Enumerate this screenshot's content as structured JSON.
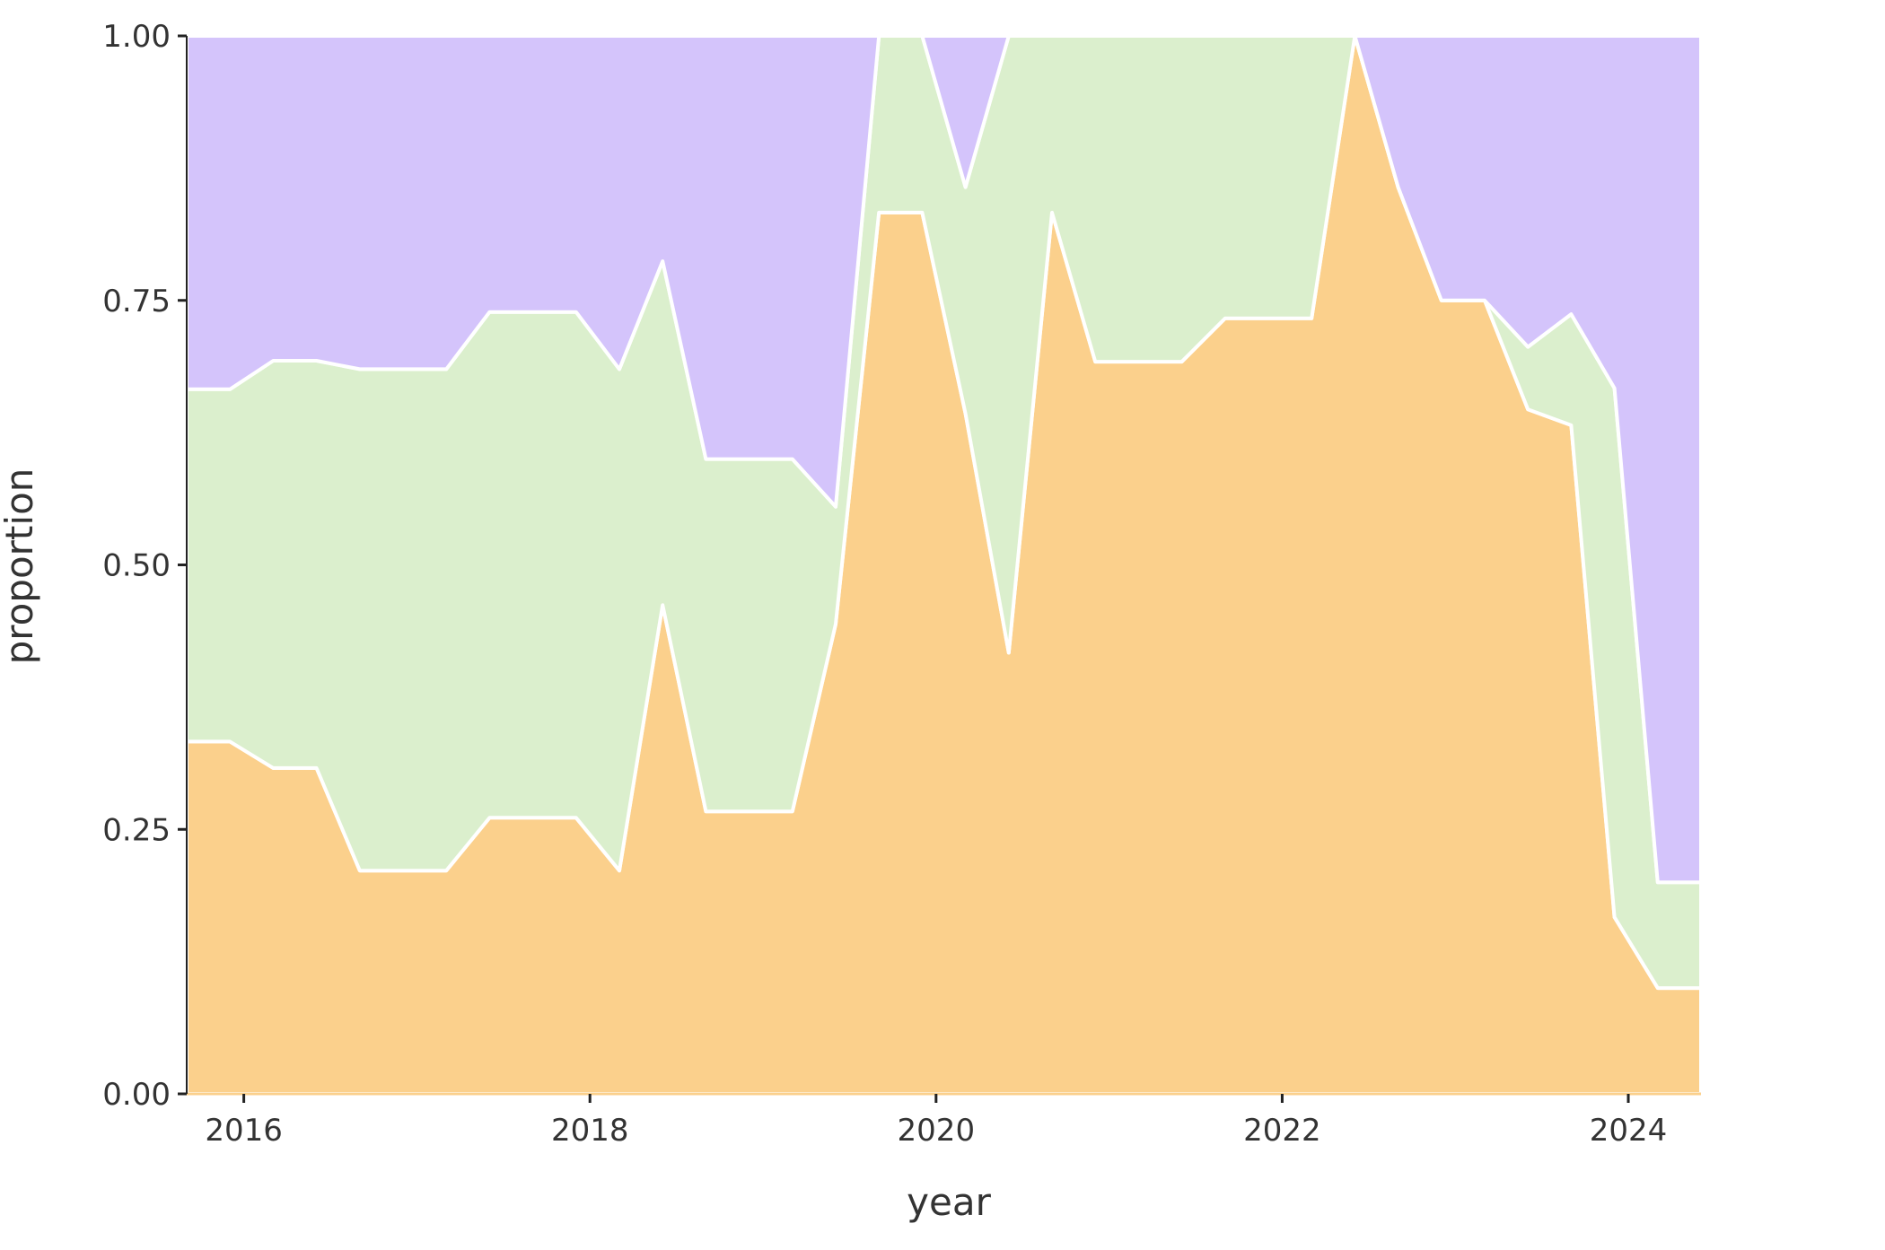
{
  "chart_data": {
    "type": "area",
    "stacked": true,
    "normalized": true,
    "xlabel": "year",
    "ylabel": "proportion",
    "xlim": [
      2015.67,
      2024.42
    ],
    "ylim": [
      0,
      1
    ],
    "x_ticks": [
      2016,
      2018,
      2020,
      2022,
      2024
    ],
    "x_tick_labels": [
      "2016",
      "2018",
      "2020",
      "2022",
      "2024"
    ],
    "y_ticks": [
      0,
      0.25,
      0.5,
      0.75,
      1.0
    ],
    "y_tick_labels": [
      "0.00",
      "0.25",
      "0.50",
      "0.75",
      "1.00"
    ],
    "grid": false,
    "legend": "none",
    "x": [
      2015.67,
      2015.92,
      2016.17,
      2016.42,
      2016.67,
      2016.92,
      2017.17,
      2017.42,
      2017.67,
      2017.92,
      2018.17,
      2018.42,
      2018.67,
      2018.92,
      2019.17,
      2019.42,
      2019.67,
      2019.92,
      2020.17,
      2020.42,
      2020.67,
      2020.92,
      2021.17,
      2021.42,
      2021.67,
      2021.92,
      2022.17,
      2022.42,
      2022.67,
      2022.92,
      2023.17,
      2023.42,
      2023.67,
      2023.92,
      2024.17,
      2024.42
    ],
    "series": [
      {
        "color": "#fbd08c",
        "values": [
          0.333,
          0.333,
          0.308,
          0.308,
          0.211,
          0.211,
          0.211,
          0.261,
          0.261,
          0.261,
          0.211,
          0.462,
          0.267,
          0.267,
          0.267,
          0.444,
          0.833,
          0.833,
          0.643,
          0.417,
          0.833,
          0.692,
          0.692,
          0.692,
          0.733,
          0.733,
          0.733,
          1.0,
          0.857,
          0.75,
          0.75,
          0.647,
          0.632,
          0.167,
          0.1,
          0.1
        ]
      },
      {
        "color": "#dbefcd",
        "values": [
          0.333,
          0.333,
          0.385,
          0.385,
          0.474,
          0.474,
          0.474,
          0.478,
          0.478,
          0.478,
          0.474,
          0.325,
          0.333,
          0.333,
          0.333,
          0.111,
          0.167,
          0.167,
          0.214,
          0.583,
          0.167,
          0.308,
          0.308,
          0.308,
          0.267,
          0.267,
          0.267,
          0.0,
          0.0,
          0.0,
          0.0,
          0.059,
          0.105,
          0.5,
          0.1,
          0.1
        ]
      },
      {
        "color": "#d4c4fb",
        "values": [
          0.334,
          0.334,
          0.307,
          0.307,
          0.315,
          0.315,
          0.315,
          0.261,
          0.261,
          0.261,
          0.315,
          0.213,
          0.4,
          0.4,
          0.4,
          0.445,
          0.0,
          0.0,
          0.143,
          0.0,
          0.0,
          0.0,
          0.0,
          0.0,
          0.0,
          0.0,
          0.0,
          0.0,
          0.143,
          0.25,
          0.25,
          0.294,
          0.263,
          0.333,
          0.8,
          0.8
        ]
      }
    ]
  }
}
